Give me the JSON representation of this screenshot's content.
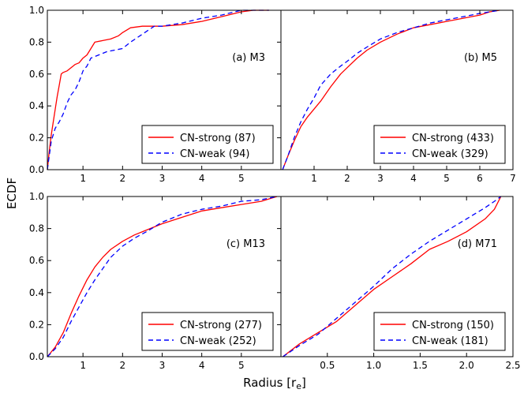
{
  "figure": {
    "ylabel": "ECDF",
    "xlabel": "Radius [r",
    "xlabel_sub": "e",
    "xlabel_end": "]"
  },
  "chart_data": [
    {
      "type": "line",
      "panel_label": "(a) M3",
      "xlim": [
        0.1,
        6
      ],
      "ylim": [
        0,
        1.0
      ],
      "xticks": [
        1,
        2,
        3,
        4,
        5
      ],
      "xtick_labels": [
        "1",
        "2",
        "3",
        "4",
        "5"
      ],
      "yticks": [
        0,
        0.2,
        0.4,
        0.6,
        0.8,
        1.0
      ],
      "ytick_labels": [
        "0.0",
        "0.2",
        "0.4",
        "0.6",
        "0.8",
        "1.0"
      ],
      "legend_position": "bottom-right",
      "series": [
        {
          "name": "CN-strong (87)",
          "color": "#ff0000",
          "style": "solid",
          "x": [
            0.1,
            0.15,
            0.2,
            0.25,
            0.3,
            0.35,
            0.4,
            0.45,
            0.5,
            0.6,
            0.7,
            0.8,
            0.9,
            1.0,
            1.1,
            1.2,
            1.3,
            1.5,
            1.7,
            1.9,
            2.0,
            2.2,
            2.5,
            3.0,
            3.5,
            4.0,
            4.5,
            5.0,
            5.3,
            5.7
          ],
          "y": [
            0.0,
            0.12,
            0.22,
            0.3,
            0.38,
            0.46,
            0.53,
            0.6,
            0.61,
            0.62,
            0.64,
            0.66,
            0.67,
            0.7,
            0.72,
            0.76,
            0.8,
            0.81,
            0.82,
            0.84,
            0.86,
            0.89,
            0.9,
            0.9,
            0.91,
            0.93,
            0.96,
            0.99,
            1.0,
            1.0
          ]
        },
        {
          "name": "CN-weak (94)",
          "color": "#0000ff",
          "style": "dashed",
          "x": [
            0.1,
            0.2,
            0.3,
            0.4,
            0.5,
            0.6,
            0.7,
            0.8,
            0.9,
            1.0,
            1.1,
            1.2,
            1.4,
            1.6,
            1.8,
            2.0,
            2.2,
            2.5,
            2.8,
            3.0,
            3.5,
            4.0,
            4.5,
            5.0,
            5.5,
            5.7
          ],
          "y": [
            0.0,
            0.18,
            0.26,
            0.3,
            0.35,
            0.42,
            0.47,
            0.5,
            0.55,
            0.62,
            0.65,
            0.7,
            0.72,
            0.74,
            0.75,
            0.76,
            0.8,
            0.85,
            0.9,
            0.9,
            0.92,
            0.95,
            0.97,
            1.0,
            1.0,
            1.0
          ]
        }
      ]
    },
    {
      "type": "line",
      "panel_label": "(b) M5",
      "xlim": [
        0,
        7
      ],
      "ylim": [
        0,
        1.0
      ],
      "xticks": [
        1,
        2,
        3,
        4,
        5,
        6,
        7
      ],
      "xtick_labels": [
        "1",
        "2",
        "3",
        "4",
        "5",
        "6",
        "7"
      ],
      "yticks": [],
      "ytick_labels": [],
      "legend_position": "bottom-right",
      "series": [
        {
          "name": "CN-strong (433)",
          "color": "#ff0000",
          "style": "solid",
          "x": [
            0.05,
            0.2,
            0.4,
            0.6,
            0.8,
            1.0,
            1.2,
            1.5,
            1.8,
            2.0,
            2.3,
            2.6,
            3.0,
            3.5,
            4.0,
            4.5,
            5.0,
            5.5,
            6.0,
            6.3,
            6.6
          ],
          "y": [
            0.0,
            0.08,
            0.18,
            0.27,
            0.33,
            0.38,
            0.43,
            0.52,
            0.6,
            0.64,
            0.7,
            0.75,
            0.8,
            0.85,
            0.89,
            0.91,
            0.93,
            0.95,
            0.97,
            0.99,
            1.0
          ]
        },
        {
          "name": "CN-weak (329)",
          "color": "#0000ff",
          "style": "dashed",
          "x": [
            0.05,
            0.2,
            0.4,
            0.6,
            0.8,
            1.0,
            1.2,
            1.5,
            1.8,
            2.0,
            2.3,
            2.6,
            3.0,
            3.5,
            4.0,
            4.5,
            5.0,
            5.5,
            6.0,
            6.3,
            6.6
          ],
          "y": [
            0.0,
            0.08,
            0.2,
            0.3,
            0.38,
            0.45,
            0.53,
            0.6,
            0.65,
            0.68,
            0.73,
            0.77,
            0.82,
            0.86,
            0.89,
            0.92,
            0.94,
            0.96,
            0.98,
            0.99,
            1.0
          ]
        }
      ]
    },
    {
      "type": "line",
      "panel_label": "(c) M13",
      "xlim": [
        0.1,
        6
      ],
      "ylim": [
        0,
        1.0
      ],
      "xticks": [
        1,
        2,
        3,
        4,
        5
      ],
      "xtick_labels": [
        "1",
        "2",
        "3",
        "4",
        "5"
      ],
      "yticks": [
        0,
        0.2,
        0.4,
        0.6,
        0.8,
        1.0
      ],
      "ytick_labels": [
        "0.0",
        "0.2",
        "0.4",
        "0.6",
        "0.8",
        "1.0"
      ],
      "legend_position": "bottom-right",
      "series": [
        {
          "name": "CN-strong (277)",
          "color": "#ff0000",
          "style": "solid",
          "x": [
            0.1,
            0.3,
            0.5,
            0.7,
            0.9,
            1.1,
            1.3,
            1.5,
            1.7,
            2.0,
            2.3,
            2.6,
            3.0,
            3.5,
            4.0,
            4.5,
            5.0,
            5.5,
            5.9
          ],
          "y": [
            0.0,
            0.06,
            0.15,
            0.27,
            0.38,
            0.48,
            0.56,
            0.62,
            0.67,
            0.72,
            0.76,
            0.79,
            0.83,
            0.87,
            0.91,
            0.93,
            0.95,
            0.97,
            1.0
          ]
        },
        {
          "name": "CN-weak (252)",
          "color": "#0000ff",
          "style": "dashed",
          "x": [
            0.1,
            0.3,
            0.5,
            0.7,
            0.9,
            1.1,
            1.3,
            1.5,
            1.7,
            2.0,
            2.3,
            2.6,
            3.0,
            3.5,
            4.0,
            4.5,
            5.0,
            5.5,
            5.9
          ],
          "y": [
            0.0,
            0.05,
            0.12,
            0.22,
            0.31,
            0.4,
            0.48,
            0.55,
            0.62,
            0.69,
            0.74,
            0.78,
            0.84,
            0.89,
            0.92,
            0.94,
            0.97,
            0.98,
            1.0
          ]
        }
      ]
    },
    {
      "type": "line",
      "panel_label": "(d) M71",
      "xlim": [
        0.0,
        2.5
      ],
      "ylim": [
        0,
        1.0
      ],
      "xticks": [
        0.5,
        1.0,
        1.5,
        2.0,
        2.5
      ],
      "xtick_labels": [
        "0.5",
        "1.0",
        "1.5",
        "2.0",
        "2.5"
      ],
      "yticks": [],
      "ytick_labels": [],
      "legend_position": "bottom-right",
      "series": [
        {
          "name": "CN-strong (150)",
          "color": "#ff0000",
          "style": "solid",
          "x": [
            0.02,
            0.2,
            0.4,
            0.6,
            0.8,
            1.0,
            1.2,
            1.4,
            1.6,
            1.8,
            2.0,
            2.2,
            2.3,
            2.37
          ],
          "y": [
            0.0,
            0.08,
            0.15,
            0.22,
            0.32,
            0.42,
            0.5,
            0.58,
            0.67,
            0.72,
            0.78,
            0.86,
            0.92,
            1.0
          ]
        },
        {
          "name": "CN-weak (181)",
          "color": "#0000ff",
          "style": "dashed",
          "x": [
            0.02,
            0.2,
            0.4,
            0.6,
            0.8,
            1.0,
            1.2,
            1.4,
            1.6,
            1.8,
            2.0,
            2.2,
            2.3,
            2.37
          ],
          "y": [
            0.0,
            0.07,
            0.14,
            0.24,
            0.34,
            0.44,
            0.55,
            0.64,
            0.72,
            0.79,
            0.86,
            0.93,
            0.97,
            1.0
          ]
        }
      ]
    }
  ]
}
